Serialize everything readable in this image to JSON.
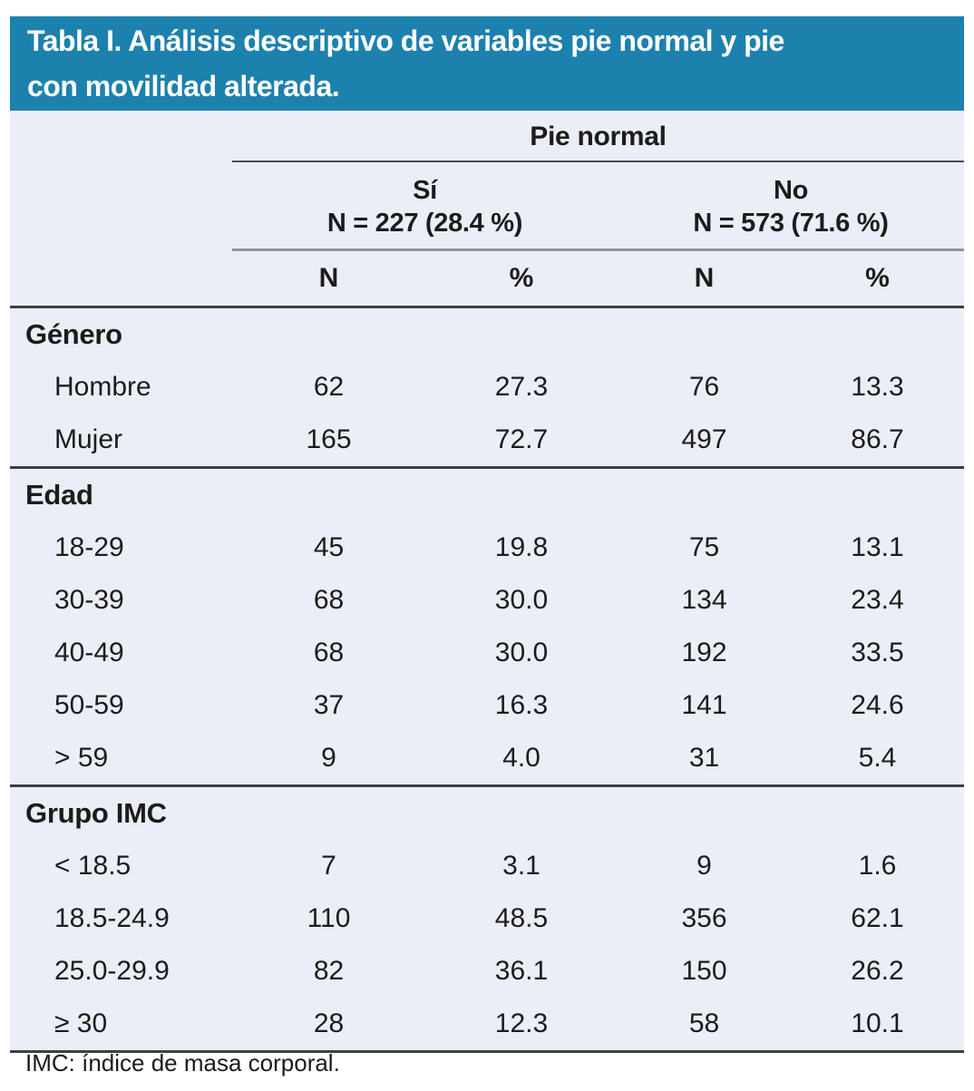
{
  "title_lines": [
    "Tabla I. Análisis descriptivo de variables pie normal y pie",
    "con movilidad alterada."
  ],
  "colors": {
    "banner_blue": "#1d81ad",
    "table_background": "#ebeef6",
    "heavy_rule": "#3d3f41",
    "gray_rule": "#8f959c",
    "text": "#1c1c1c"
  },
  "table": {
    "group_header": "Pie normal",
    "subgroups": [
      {
        "label": "Sí",
        "n_label": "N = 227 (28.4 %)"
      },
      {
        "label": "No",
        "n_label": "N = 573 (71.6 %)"
      }
    ],
    "col_headers": [
      "N",
      "%",
      "N",
      "%"
    ],
    "sections": [
      {
        "name": "Género",
        "rows": [
          {
            "label": "Hombre",
            "values": [
              "62",
              "27.3",
              "76",
              "13.3"
            ]
          },
          {
            "label": "Mujer",
            "values": [
              "165",
              "72.7",
              "497",
              "86.7"
            ]
          }
        ]
      },
      {
        "name": "Edad",
        "rows": [
          {
            "label": "18-29",
            "values": [
              "45",
              "19.8",
              "75",
              "13.1"
            ]
          },
          {
            "label": "30-39",
            "values": [
              "68",
              "30.0",
              "134",
              "23.4"
            ]
          },
          {
            "label": "40-49",
            "values": [
              "68",
              "30.0",
              "192",
              "33.5"
            ]
          },
          {
            "label": "50-59",
            "values": [
              "37",
              "16.3",
              "141",
              "24.6"
            ]
          },
          {
            "label": "> 59",
            "values": [
              "9",
              "4.0",
              "31",
              "5.4"
            ]
          }
        ]
      },
      {
        "name": "Grupo IMC",
        "rows": [
          {
            "label": "< 18.5",
            "values": [
              "7",
              "3.1",
              "9",
              "1.6"
            ]
          },
          {
            "label": "18.5-24.9",
            "values": [
              "110",
              "48.5",
              "356",
              "62.1"
            ]
          },
          {
            "label": "25.0-29.9",
            "values": [
              "82",
              "36.1",
              "150",
              "26.2"
            ]
          },
          {
            "label": "≥ 30",
            "values": [
              "28",
              "12.3",
              "58",
              "10.1"
            ]
          }
        ]
      }
    ],
    "footnote": "IMC: índice de masa corporal."
  }
}
